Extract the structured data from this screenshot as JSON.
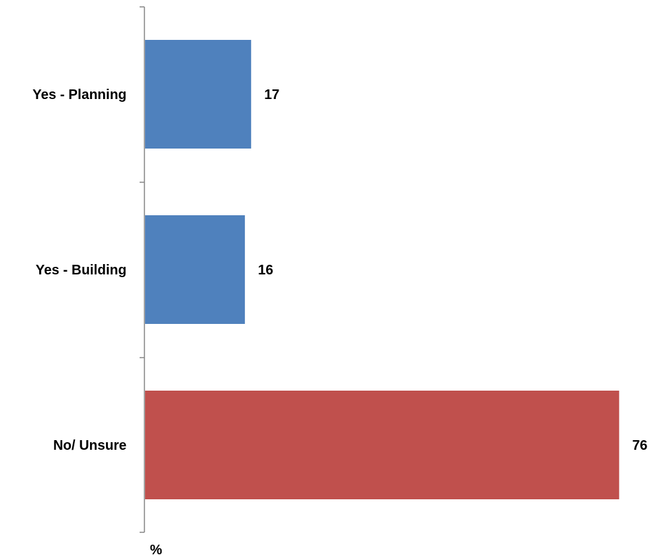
{
  "chart_data": {
    "type": "bar",
    "orientation": "horizontal",
    "categories": [
      "Yes - Planning",
      "Yes - Building",
      "No/ Unsure"
    ],
    "values": [
      17,
      16,
      76
    ],
    "data_labels": [
      "17",
      "16",
      "76"
    ],
    "bar_colors": [
      "#4F81BD",
      "#4F81BD",
      "#C0504D"
    ],
    "xlabel": "%",
    "ylabel": "",
    "xlim": [
      0,
      76
    ],
    "grid": false,
    "legend": "none"
  }
}
